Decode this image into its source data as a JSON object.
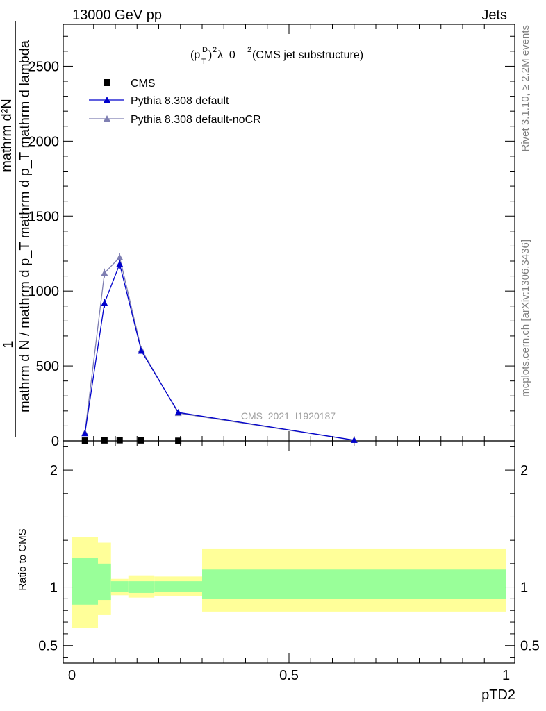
{
  "header": {
    "left": "13000 GeV pp",
    "right": "Jets"
  },
  "side_labels": {
    "rivet": "Rivet 3.1.10, ≥ 2.2M events",
    "mcplots": "mcplots.cern.ch [arXiv:1306.3436]"
  },
  "watermark": "CMS_2021_I1920187",
  "plot_title": {
    "base": "(p",
    "sup_d": "D",
    "sub_t": "T",
    "rest": ")",
    "sup_2": "2",
    "lambda": " λ_0",
    "sup_2b": "2",
    "tail": " (CMS jet substructure)"
  },
  "y_axis_main": {
    "line1": "1",
    "line2": "mathrm d N / mathrm d p_T mathrm d p_T mathrm d lambda",
    "line3": "mathrm d²N"
  },
  "y_axis_ratio_label": "Ratio to CMS",
  "x_axis_label": "pTD2",
  "legend": [
    {
      "label": "CMS",
      "color": "#000000",
      "marker": "square"
    },
    {
      "label": "Pythia 8.308 default",
      "color": "#0000cc",
      "marker": "triangle"
    },
    {
      "label": "Pythia 8.308 default-noCR",
      "color": "#7f7fb2",
      "marker": "triangle"
    }
  ],
  "chart_data": {
    "type": "line",
    "x_range": [
      -0.02,
      1.02
    ],
    "main": {
      "ylim": [
        0,
        2780
      ],
      "yticks": [
        0,
        500,
        1000,
        1500,
        2000,
        2500
      ],
      "ytick_labels": [
        "0",
        "500",
        "1000",
        "1500",
        "2000",
        "2500"
      ],
      "series": [
        {
          "name": "CMS",
          "x": [
            0.03,
            0.075,
            0.11,
            0.16,
            0.245
          ],
          "y": [
            2,
            3,
            4,
            3,
            1
          ]
        },
        {
          "name": "Pythia 8.308 default",
          "x": [
            0.03,
            0.075,
            0.11,
            0.16,
            0.245,
            0.65
          ],
          "y": [
            50,
            920,
            1180,
            600,
            190,
            5
          ],
          "err": [
            5,
            30,
            30,
            15,
            8,
            2
          ]
        },
        {
          "name": "Pythia 8.308 default-noCR",
          "x": [
            0.03,
            0.075,
            0.11,
            0.16,
            0.245,
            0.65
          ],
          "y": [
            55,
            1120,
            1225,
            610,
            185,
            5
          ],
          "err": [
            5,
            30,
            30,
            15,
            8,
            2
          ]
        }
      ]
    },
    "ratio": {
      "ylim": [
        0.35,
        2.25
      ],
      "yticks": [
        0.5,
        1,
        2
      ],
      "ytick_labels": [
        "0.5",
        "1",
        "2"
      ],
      "bands": [
        {
          "x0": 0.0,
          "x1": 0.06,
          "yellow": [
            0.65,
            1.43
          ],
          "green": [
            0.85,
            1.25
          ]
        },
        {
          "x0": 0.06,
          "x1": 0.09,
          "yellow": [
            0.76,
            1.38
          ],
          "green": [
            0.89,
            1.2
          ]
        },
        {
          "x0": 0.09,
          "x1": 0.13,
          "yellow": [
            0.93,
            1.07
          ],
          "green": [
            0.96,
            1.05
          ]
        },
        {
          "x0": 0.13,
          "x1": 0.19,
          "yellow": [
            0.91,
            1.1
          ],
          "green": [
            0.95,
            1.05
          ]
        },
        {
          "x0": 0.19,
          "x1": 0.3,
          "yellow": [
            0.92,
            1.09
          ],
          "green": [
            0.96,
            1.05
          ]
        },
        {
          "x0": 0.3,
          "x1": 1.0,
          "yellow": [
            0.79,
            1.33
          ],
          "green": [
            0.9,
            1.15
          ]
        }
      ]
    },
    "xticks": [
      0,
      0.5,
      1
    ],
    "xtick_labels": [
      "0",
      "0.5",
      "1"
    ]
  }
}
